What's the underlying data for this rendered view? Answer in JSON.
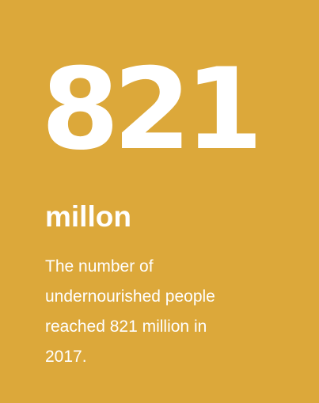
{
  "card": {
    "stat_value": "821",
    "stat_unit": "millon",
    "description_lines": [
      "The number of",
      "undernourished people",
      "reached 821 million in",
      "2017."
    ]
  },
  "colors": {
    "background": "#DCA83A",
    "text": "#FFFFFF"
  }
}
